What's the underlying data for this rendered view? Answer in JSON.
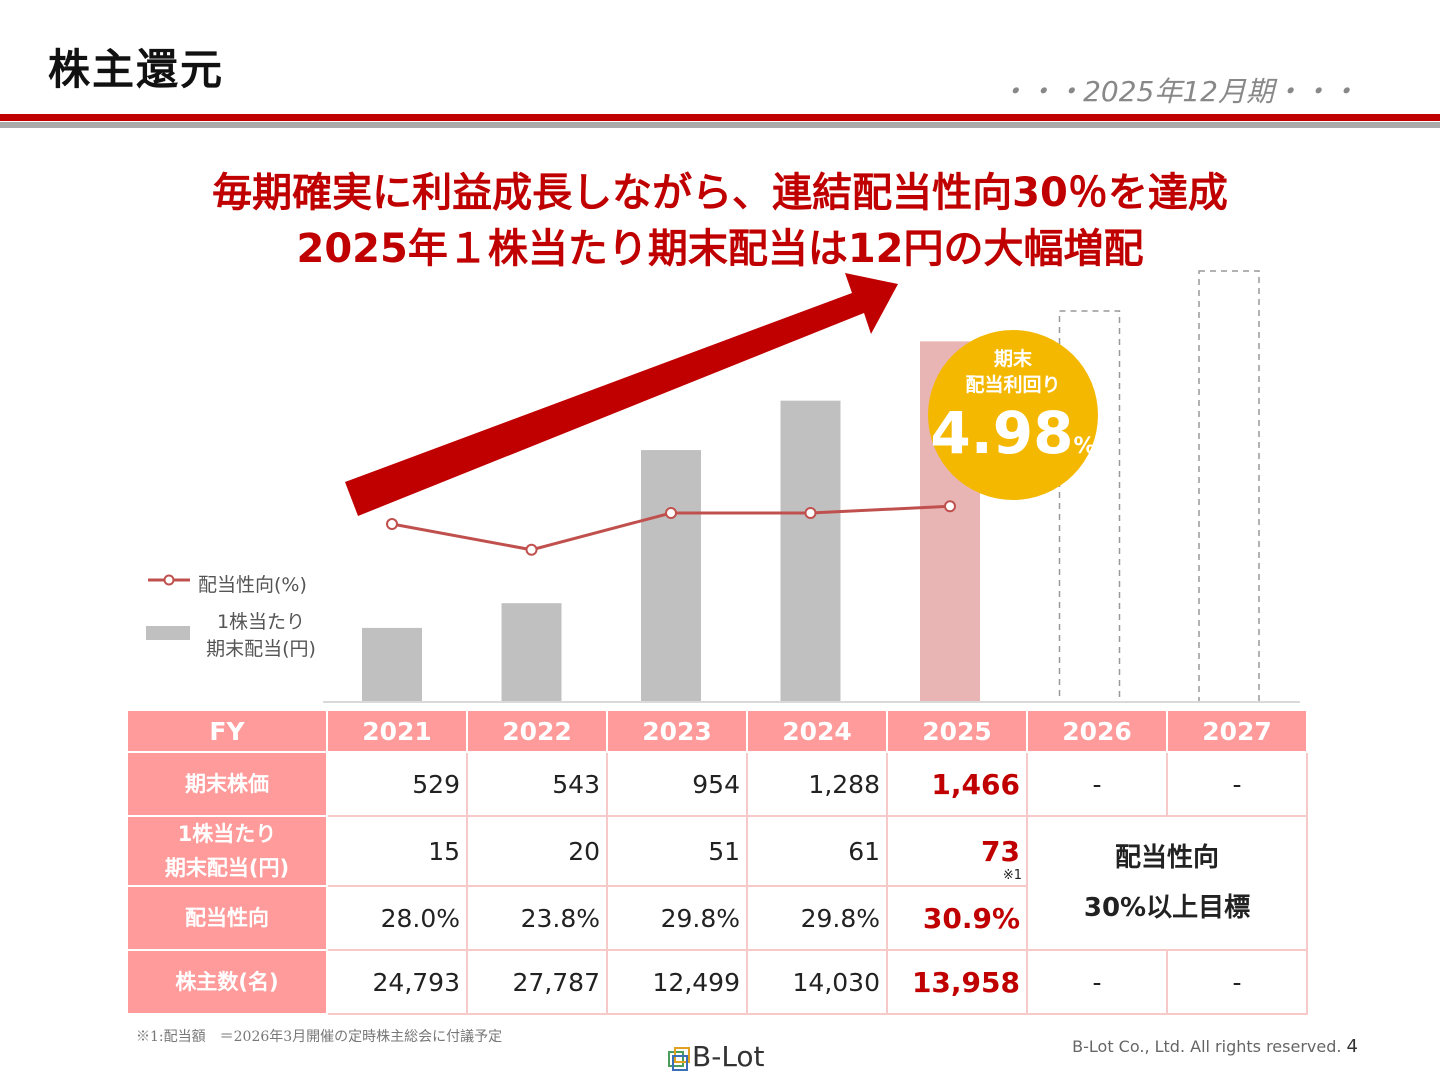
{
  "header": {
    "title": "株主還元",
    "period": "・・・2025年12月期・・・"
  },
  "headline": {
    "line1": "毎期確実に利益成長しながら、連結配当性向30％を達成",
    "line2": "2025年１株当たり期末配当は12円の大幅増配"
  },
  "badge": {
    "line1": "期末",
    "line2": "配当利回り",
    "value": "4.98",
    "unit": "%"
  },
  "legend": {
    "payout_label": "配当性向(%)",
    "dividend_label_1": "1株当たり",
    "dividend_label_2": "期末配当(円)"
  },
  "chart_data": {
    "type": "bar",
    "categories": [
      "2021",
      "2022",
      "2023",
      "2024",
      "2025",
      "2026",
      "2027"
    ],
    "series": [
      {
        "name": "1株当たり期末配当(円)",
        "type": "bar",
        "values": [
          15,
          20,
          51,
          61,
          73,
          null,
          null
        ]
      },
      {
        "name": "配当性向(%)",
        "type": "line",
        "values": [
          28.0,
          23.8,
          29.8,
          29.8,
          30.9,
          null,
          null
        ]
      }
    ],
    "placeholder_bars": [
      "2026",
      "2027"
    ],
    "highlight_category": "2025",
    "colors": {
      "bar": "#c0c0c0",
      "bar_highlight": "#e8b4b4",
      "line": "#c0504d",
      "arrow": "#c00000"
    }
  },
  "table": {
    "header": [
      "FY",
      "2021",
      "2022",
      "2023",
      "2024",
      "2025",
      "2026",
      "2027"
    ],
    "rows": [
      {
        "label": "期末株価",
        "values": [
          "529",
          "543",
          "954",
          "1,288",
          "1,466"
        ],
        "future": [
          "-",
          "-"
        ]
      },
      {
        "label1": "1株当たり",
        "label2": "期末配当(円)",
        "values": [
          "15",
          "20",
          "51",
          "61",
          "73"
        ],
        "note": "※1"
      },
      {
        "label": "配当性向",
        "values": [
          "28.0%",
          "23.8%",
          "29.8%",
          "29.8%",
          "30.9%"
        ]
      },
      {
        "label": "株主数(名)",
        "values": [
          "24,793",
          "27,787",
          "12,499",
          "14,030",
          "13,958"
        ],
        "future": [
          "-",
          "-"
        ]
      }
    ],
    "target_line1": "配当性向",
    "target_line2": "30%以上目標"
  },
  "footer": {
    "footnote": "※1:配当額　＝2026年3月開催の定時株主総会に付議予定",
    "logo_text": "B-Lot",
    "copyright": "B-Lot Co., Ltd. All rights reserved.",
    "page": "4"
  }
}
